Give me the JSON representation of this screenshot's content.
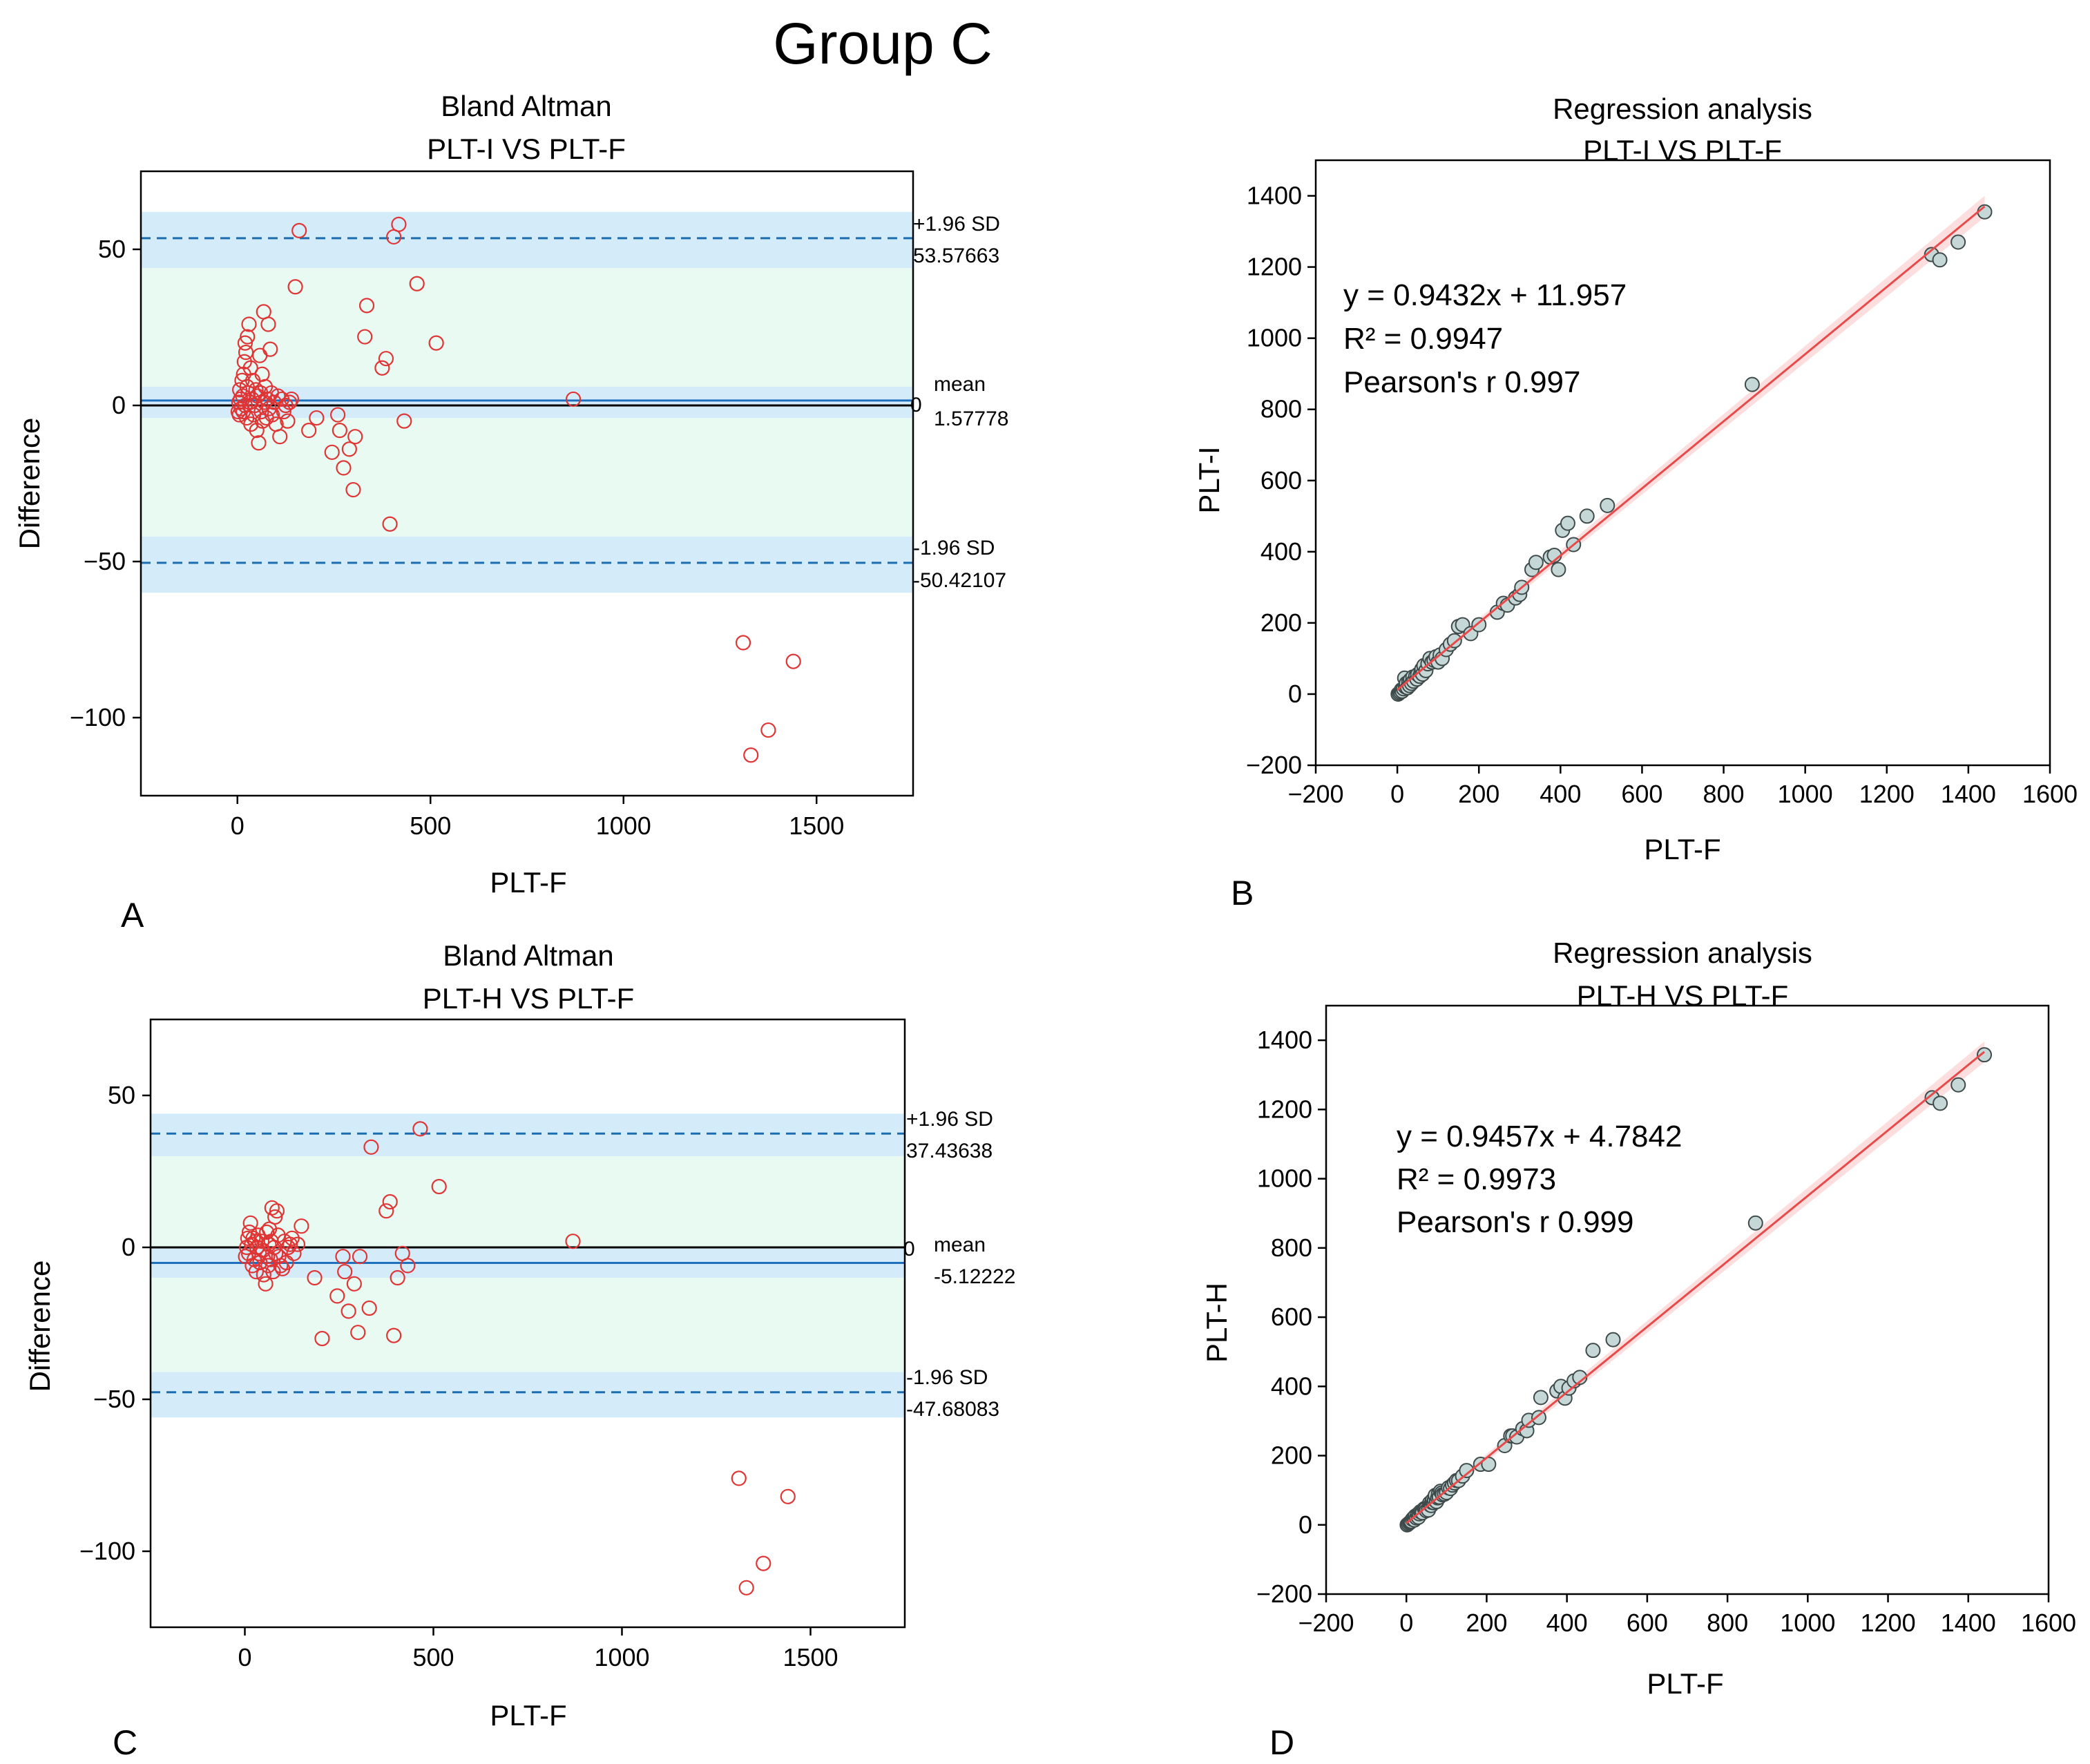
{
  "figure": {
    "title": "Group C"
  },
  "chart_data": [
    {
      "panel": "A",
      "type": "scatter",
      "subtype": "bland-altman",
      "title": [
        "Bland Altman",
        "PLT-I VS PLT-F"
      ],
      "xlabel": "PLT-F",
      "ylabel": "Difference",
      "xlim": [
        -250,
        1750
      ],
      "ylim": [
        -125,
        75
      ],
      "xticks": [
        0,
        500,
        1000,
        1500
      ],
      "yticks": [
        -100,
        -50,
        0,
        50
      ],
      "mean": 1.57778,
      "upper_loa": 53.57663,
      "lower_loa": -50.42107,
      "zero_label": "0",
      "labels": {
        "upper": "+1.96 SD",
        "mean": "mean",
        "lower": "-1.96 SD",
        "upper_value": "53.57663",
        "mean_value": "1.57778",
        "lower_value": "-50.42107"
      },
      "bands": {
        "upper": [
          44,
          62
        ],
        "mean": [
          -4,
          6
        ],
        "lower": [
          -60,
          -42
        ]
      },
      "points": [
        [
          2,
          -2
        ],
        [
          4,
          1
        ],
        [
          5,
          -3
        ],
        [
          6,
          5
        ],
        [
          8,
          2
        ],
        [
          10,
          -1
        ],
        [
          12,
          8
        ],
        [
          14,
          3
        ],
        [
          15,
          -2
        ],
        [
          16,
          10
        ],
        [
          18,
          14
        ],
        [
          20,
          0
        ],
        [
          20,
          20
        ],
        [
          22,
          17
        ],
        [
          24,
          -4
        ],
        [
          25,
          6
        ],
        [
          26,
          22
        ],
        [
          28,
          4
        ],
        [
          30,
          26
        ],
        [
          32,
          1
        ],
        [
          34,
          12
        ],
        [
          35,
          -6
        ],
        [
          38,
          2
        ],
        [
          40,
          8
        ],
        [
          42,
          -3
        ],
        [
          45,
          0
        ],
        [
          48,
          5
        ],
        [
          50,
          -8
        ],
        [
          52,
          3
        ],
        [
          55,
          -12
        ],
        [
          58,
          16
        ],
        [
          60,
          4
        ],
        [
          62,
          -2
        ],
        [
          64,
          10
        ],
        [
          65,
          -5
        ],
        [
          68,
          30
        ],
        [
          70,
          1
        ],
        [
          72,
          6
        ],
        [
          75,
          -4
        ],
        [
          78,
          2
        ],
        [
          80,
          26
        ],
        [
          82,
          -1
        ],
        [
          85,
          18
        ],
        [
          88,
          4
        ],
        [
          90,
          -3
        ],
        [
          95,
          1
        ],
        [
          100,
          -6
        ],
        [
          105,
          3
        ],
        [
          110,
          -10
        ],
        [
          115,
          2
        ],
        [
          120,
          -2
        ],
        [
          125,
          0
        ],
        [
          130,
          -5
        ],
        [
          135,
          1
        ],
        [
          140,
          2
        ],
        [
          150,
          38
        ],
        [
          160,
          56
        ],
        [
          185,
          -8
        ],
        [
          205,
          -4
        ],
        [
          245,
          -15
        ],
        [
          260,
          -3
        ],
        [
          265,
          -8
        ],
        [
          275,
          -20
        ],
        [
          290,
          -14
        ],
        [
          300,
          -27
        ],
        [
          305,
          -10
        ],
        [
          330,
          22
        ],
        [
          335,
          32
        ],
        [
          375,
          12
        ],
        [
          385,
          15
        ],
        [
          395,
          -38
        ],
        [
          405,
          54
        ],
        [
          418,
          58
        ],
        [
          432,
          -5
        ],
        [
          465,
          39
        ],
        [
          515,
          20
        ],
        [
          870,
          2
        ],
        [
          1310,
          -76
        ],
        [
          1330,
          -112
        ],
        [
          1375,
          -104
        ],
        [
          1440,
          -82
        ]
      ]
    },
    {
      "panel": "B",
      "type": "scatter",
      "subtype": "regression",
      "title": [
        "Regression analysis",
        "PLT-I VS PLT-F"
      ],
      "xlabel": "PLT-F",
      "ylabel": "PLT-I",
      "xlim": [
        -200,
        1600
      ],
      "ylim": [
        -200,
        1500
      ],
      "xticks": [
        -200,
        0,
        200,
        400,
        600,
        800,
        1000,
        1200,
        1400,
        1600
      ],
      "yticks": [
        -200,
        0,
        200,
        400,
        600,
        800,
        1000,
        1200,
        1400
      ],
      "fit": {
        "slope": 0.9432,
        "intercept": 11.957,
        "x_range": [
          0,
          1440
        ]
      },
      "equation": "y = 0.9432x + 11.957",
      "r2_label": "R² = 0.9947",
      "pearson_label": "Pearson's r  0.997",
      "points": [
        [
          2,
          0
        ],
        [
          5,
          3
        ],
        [
          8,
          6
        ],
        [
          10,
          12
        ],
        [
          12,
          8
        ],
        [
          15,
          15
        ],
        [
          18,
          45
        ],
        [
          20,
          20
        ],
        [
          22,
          30
        ],
        [
          25,
          18
        ],
        [
          28,
          35
        ],
        [
          30,
          24
        ],
        [
          32,
          40
        ],
        [
          35,
          30
        ],
        [
          38,
          48
        ],
        [
          40,
          36
        ],
        [
          45,
          50
        ],
        [
          48,
          42
        ],
        [
          50,
          55
        ],
        [
          55,
          50
        ],
        [
          58,
          62
        ],
        [
          60,
          70
        ],
        [
          62,
          56
        ],
        [
          65,
          80
        ],
        [
          70,
          66
        ],
        [
          75,
          85
        ],
        [
          80,
          100
        ],
        [
          85,
          90
        ],
        [
          90,
          95
        ],
        [
          95,
          105
        ],
        [
          100,
          90
        ],
        [
          105,
          110
        ],
        [
          110,
          100
        ],
        [
          120,
          125
        ],
        [
          130,
          140
        ],
        [
          140,
          150
        ],
        [
          150,
          190
        ],
        [
          160,
          195
        ],
        [
          180,
          170
        ],
        [
          200,
          195
        ],
        [
          245,
          230
        ],
        [
          260,
          255
        ],
        [
          270,
          250
        ],
        [
          290,
          270
        ],
        [
          300,
          280
        ],
        [
          305,
          300
        ],
        [
          330,
          350
        ],
        [
          340,
          370
        ],
        [
          375,
          385
        ],
        [
          385,
          390
        ],
        [
          395,
          350
        ],
        [
          405,
          460
        ],
        [
          418,
          480
        ],
        [
          432,
          420
        ],
        [
          465,
          500
        ],
        [
          515,
          530
        ],
        [
          870,
          870
        ],
        [
          1310,
          1235
        ],
        [
          1330,
          1220
        ],
        [
          1375,
          1270
        ],
        [
          1440,
          1355
        ]
      ]
    },
    {
      "panel": "C",
      "type": "scatter",
      "subtype": "bland-altman",
      "title": [
        "Bland Altman",
        "PLT-H VS PLT-F"
      ],
      "xlabel": "PLT-F",
      "ylabel": "Difference",
      "xlim": [
        -250,
        1750
      ],
      "ylim": [
        -125,
        75
      ],
      "xticks": [
        0,
        500,
        1000,
        1500
      ],
      "yticks": [
        -100,
        -50,
        0,
        50
      ],
      "mean": -5.12222,
      "upper_loa": 37.43638,
      "lower_loa": -47.68083,
      "zero_label": "0",
      "labels": {
        "upper": "+1.96 SD",
        "mean": "mean",
        "lower": "-1.96 SD",
        "upper_value": "37.43638",
        "mean_value": "-5.12222",
        "lower_value": "-47.68083"
      },
      "bands": {
        "upper": [
          30,
          44
        ],
        "mean": [
          -10,
          0
        ],
        "lower": [
          -56,
          -41
        ]
      },
      "points": [
        [
          2,
          -3
        ],
        [
          5,
          0
        ],
        [
          8,
          3
        ],
        [
          10,
          -2
        ],
        [
          12,
          5
        ],
        [
          15,
          8
        ],
        [
          18,
          1
        ],
        [
          20,
          -6
        ],
        [
          22,
          3
        ],
        [
          25,
          -4
        ],
        [
          28,
          2
        ],
        [
          30,
          -8
        ],
        [
          32,
          0
        ],
        [
          35,
          4
        ],
        [
          38,
          -2
        ],
        [
          40,
          -5
        ],
        [
          45,
          2
        ],
        [
          48,
          -1
        ],
        [
          50,
          -9
        ],
        [
          55,
          -12
        ],
        [
          58,
          5
        ],
        [
          60,
          -3
        ],
        [
          62,
          -6
        ],
        [
          64,
          1
        ],
        [
          65,
          6
        ],
        [
          68,
          -4
        ],
        [
          70,
          2
        ],
        [
          72,
          13
        ],
        [
          75,
          -8
        ],
        [
          78,
          0
        ],
        [
          80,
          10
        ],
        [
          82,
          -2
        ],
        [
          85,
          12
        ],
        [
          88,
          4
        ],
        [
          90,
          -3
        ],
        [
          95,
          -6
        ],
        [
          100,
          -7
        ],
        [
          105,
          2
        ],
        [
          110,
          -5
        ],
        [
          115,
          0
        ],
        [
          120,
          1
        ],
        [
          125,
          3
        ],
        [
          130,
          -2
        ],
        [
          140,
          1
        ],
        [
          150,
          7
        ],
        [
          185,
          -10
        ],
        [
          205,
          -30
        ],
        [
          245,
          -16
        ],
        [
          260,
          -3
        ],
        [
          265,
          -8
        ],
        [
          275,
          -21
        ],
        [
          290,
          -12
        ],
        [
          300,
          -28
        ],
        [
          305,
          -3
        ],
        [
          330,
          -20
        ],
        [
          335,
          33
        ],
        [
          375,
          12
        ],
        [
          385,
          15
        ],
        [
          395,
          -29
        ],
        [
          405,
          -10
        ],
        [
          418,
          -2
        ],
        [
          432,
          -6
        ],
        [
          465,
          39
        ],
        [
          515,
          20
        ],
        [
          870,
          2
        ],
        [
          1310,
          -76
        ],
        [
          1330,
          -112
        ],
        [
          1375,
          -104
        ],
        [
          1440,
          -82
        ]
      ]
    },
    {
      "panel": "D",
      "type": "scatter",
      "subtype": "regression",
      "title": [
        "Regression analysis",
        "PLT-H VS PLT-F"
      ],
      "xlabel": "PLT-F",
      "ylabel": "PLT-H",
      "xlim": [
        -200,
        1600
      ],
      "ylim": [
        -200,
        1500
      ],
      "xticks": [
        -200,
        0,
        200,
        400,
        600,
        800,
        1000,
        1200,
        1400,
        1600
      ],
      "yticks": [
        -200,
        0,
        200,
        400,
        600,
        800,
        1000,
        1200,
        1400
      ],
      "fit": {
        "slope": 0.9457,
        "intercept": 4.7842,
        "x_range": [
          0,
          1440
        ]
      },
      "equation": "y = 0.9457x + 4.7842",
      "r2_label": "R² = 0.9973",
      "pearson_label": "Pearson's r  0.999",
      "points": [
        [
          2,
          0
        ],
        [
          5,
          3
        ],
        [
          8,
          6
        ],
        [
          10,
          8
        ],
        [
          12,
          10
        ],
        [
          15,
          16
        ],
        [
          18,
          20
        ],
        [
          20,
          14
        ],
        [
          22,
          25
        ],
        [
          25,
          20
        ],
        [
          28,
          30
        ],
        [
          30,
          22
        ],
        [
          32,
          32
        ],
        [
          35,
          38
        ],
        [
          38,
          36
        ],
        [
          40,
          35
        ],
        [
          45,
          47
        ],
        [
          48,
          46
        ],
        [
          50,
          41
        ],
        [
          55,
          43
        ],
        [
          58,
          63
        ],
        [
          60,
          57
        ],
        [
          62,
          56
        ],
        [
          64,
          65
        ],
        [
          65,
          71
        ],
        [
          68,
          64
        ],
        [
          70,
          72
        ],
        [
          72,
          85
        ],
        [
          75,
          67
        ],
        [
          78,
          78
        ],
        [
          80,
          90
        ],
        [
          82,
          80
        ],
        [
          85,
          97
        ],
        [
          88,
          92
        ],
        [
          90,
          87
        ],
        [
          95,
          89
        ],
        [
          100,
          93
        ],
        [
          105,
          107
        ],
        [
          110,
          105
        ],
        [
          115,
          115
        ],
        [
          120,
          121
        ],
        [
          125,
          128
        ],
        [
          130,
          128
        ],
        [
          140,
          141
        ],
        [
          150,
          157
        ],
        [
          185,
          175
        ],
        [
          205,
          175
        ],
        [
          245,
          229
        ],
        [
          260,
          257
        ],
        [
          265,
          257
        ],
        [
          275,
          254
        ],
        [
          290,
          278
        ],
        [
          300,
          272
        ],
        [
          305,
          302
        ],
        [
          330,
          310
        ],
        [
          335,
          368
        ],
        [
          375,
          387
        ],
        [
          385,
          400
        ],
        [
          395,
          366
        ],
        [
          405,
          395
        ],
        [
          418,
          416
        ],
        [
          432,
          426
        ],
        [
          465,
          504
        ],
        [
          515,
          535
        ],
        [
          870,
          872
        ],
        [
          1310,
          1234
        ],
        [
          1330,
          1218
        ],
        [
          1375,
          1271
        ],
        [
          1440,
          1358
        ]
      ]
    }
  ]
}
